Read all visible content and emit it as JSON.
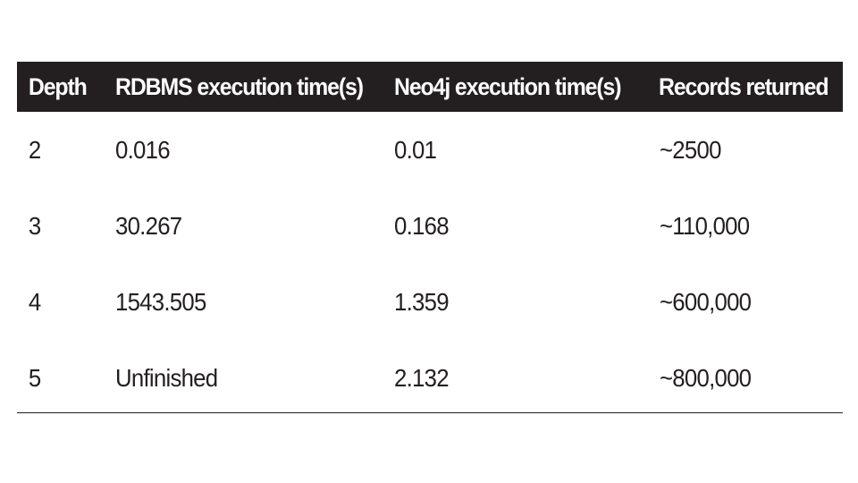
{
  "table": {
    "headers": [
      "Depth",
      "RDBMS execution time(s)",
      "Neo4j execution time(s)",
      "Records returned"
    ],
    "rows": [
      [
        "2",
        "0.016",
        "0.01",
        "~2500"
      ],
      [
        "3",
        "30.267",
        "0.168",
        "~110,000"
      ],
      [
        "4",
        "1543.505",
        "1.359",
        "~600,000"
      ],
      [
        "5",
        "Unfinished",
        "2.132",
        "~800,000"
      ]
    ]
  }
}
